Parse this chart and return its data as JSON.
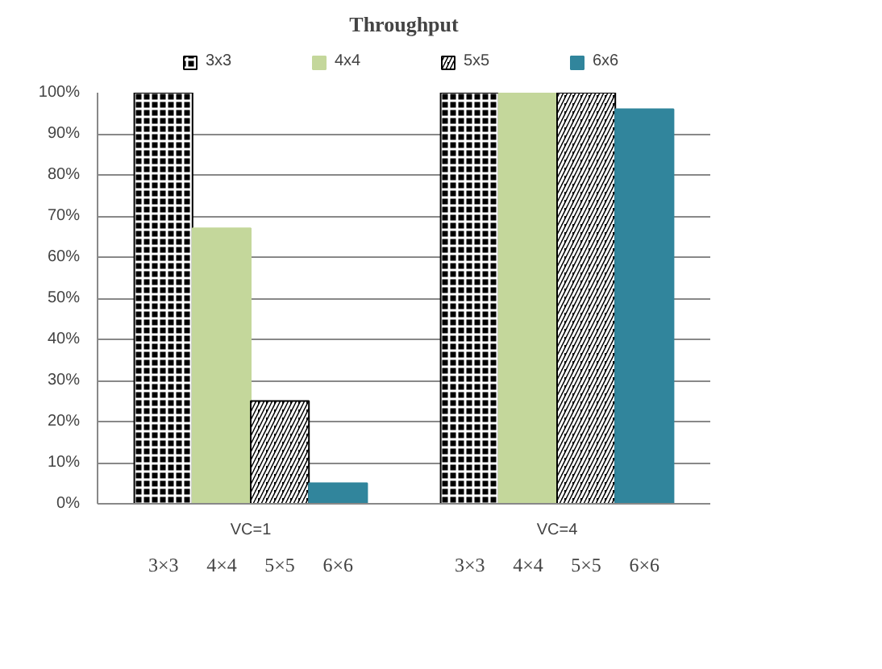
{
  "chart_data": {
    "type": "bar",
    "title": "Throughput",
    "categories": [
      "VC=1",
      "VC=4"
    ],
    "series": [
      {
        "name": "3x3",
        "color": "#000000",
        "values": [
          100,
          100
        ]
      },
      {
        "name": "4x4",
        "color": "#c4d79b",
        "values": [
          67,
          100
        ]
      },
      {
        "name": "5x5",
        "color": "#000000",
        "values": [
          25,
          100
        ]
      },
      {
        "name": "6x6",
        "color": "#31859c",
        "values": [
          5,
          96
        ]
      }
    ],
    "ylim": [
      0,
      100
    ],
    "yticks": [
      {
        "value": 0,
        "label": "0%"
      },
      {
        "value": 10,
        "label": "10%"
      },
      {
        "value": 20,
        "label": "20%"
      },
      {
        "value": 30,
        "label": "30%"
      },
      {
        "value": 40,
        "label": "40%"
      },
      {
        "value": 50,
        "label": "50%"
      },
      {
        "value": 60,
        "label": "60%"
      },
      {
        "value": 70,
        "label": "70%"
      },
      {
        "value": 80,
        "label": "80%"
      },
      {
        "value": 90,
        "label": "90%"
      },
      {
        "value": 100,
        "label": "100%"
      }
    ],
    "grid": "y",
    "legend": "top",
    "annotations": [
      "3×3",
      "4×4",
      "5×5",
      "6×6",
      "3×3",
      "4×4",
      "5×5",
      "6×6"
    ]
  }
}
